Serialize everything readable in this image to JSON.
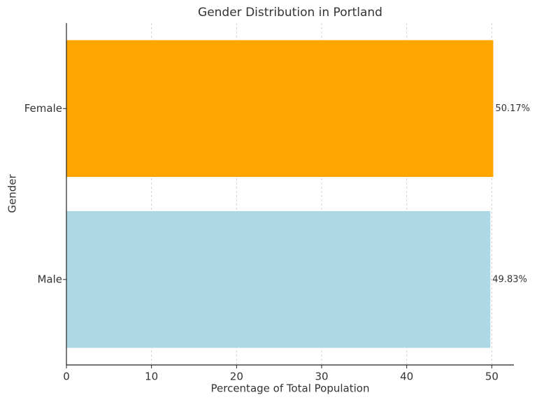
{
  "chart_data": {
    "type": "barh",
    "title": "Gender Distribution in Portland",
    "x_label": "Percentage of Total Population",
    "y_label": "Gender",
    "categories": [
      "Male",
      "Female"
    ],
    "values": [
      49.83,
      50.17
    ],
    "value_labels": [
      "49.83%",
      "50.17%"
    ],
    "colors": [
      "#add8e6",
      "#ffa500"
    ],
    "xlim": [
      0,
      52.6
    ],
    "xticks": [
      0,
      10,
      20,
      30,
      40,
      50
    ],
    "grid": true
  }
}
